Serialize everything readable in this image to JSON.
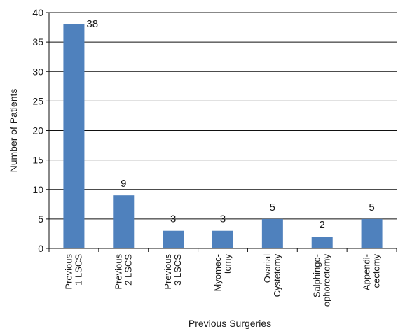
{
  "chart_data": {
    "type": "bar",
    "categories": [
      [
        "Previous",
        "1 LSCS"
      ],
      [
        "Previous",
        "2 LSCS"
      ],
      [
        "Previous",
        "3 LSCS"
      ],
      [
        "Myomec-",
        "tomy"
      ],
      [
        "Ovarial",
        "Cystetomy"
      ],
      [
        "Salphingo-",
        "ophorectomy"
      ],
      [
        "Appendi-",
        "cectomy"
      ]
    ],
    "values": [
      38,
      9,
      3,
      3,
      5,
      2,
      5
    ],
    "data_labels": [
      "38",
      "9",
      "3",
      "3",
      "5",
      "2",
      "5"
    ],
    "xlabel": "Previous Surgeries",
    "ylabel": "Number of Patients",
    "ylim": [
      0,
      40
    ],
    "yticks": [
      0,
      5,
      10,
      15,
      20,
      25,
      30,
      35,
      40
    ],
    "grid": true,
    "legend": "none",
    "bar_color": "#4f81bd"
  }
}
